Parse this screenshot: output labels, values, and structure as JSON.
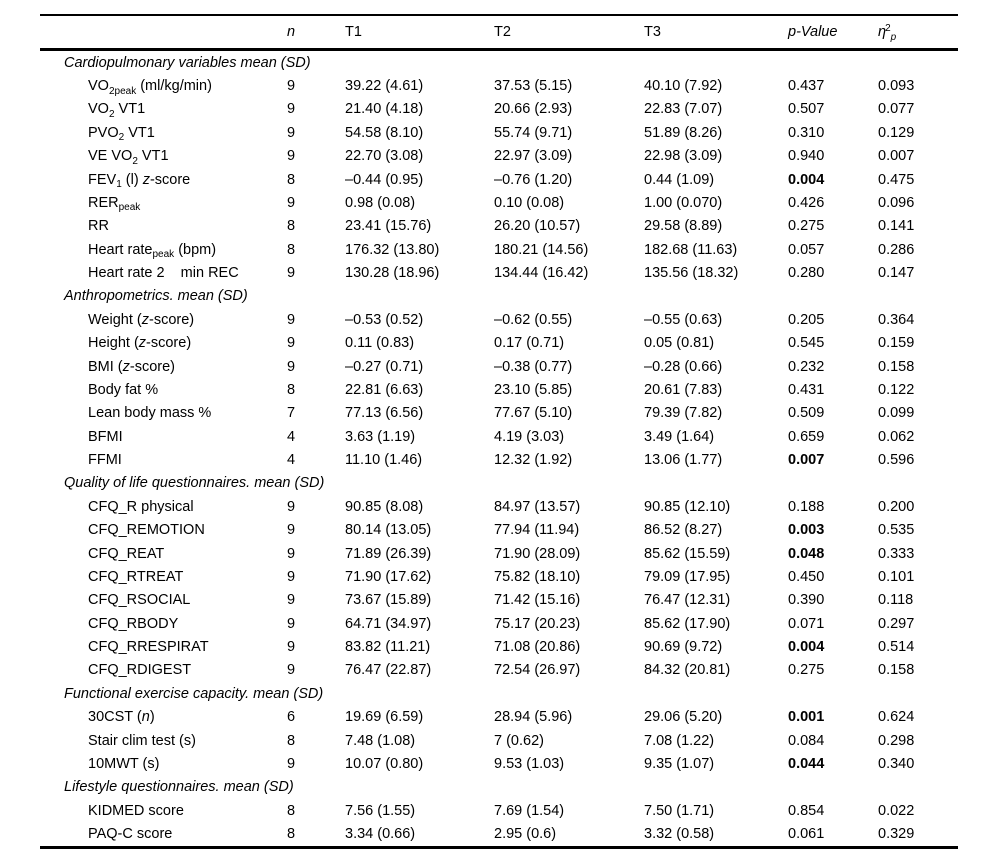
{
  "header": {
    "cols": [
      {
        "key": "label",
        "segs": []
      },
      {
        "key": "n",
        "segs": [
          [
            "n",
            "i"
          ]
        ]
      },
      {
        "key": "t1",
        "segs": [
          [
            "T1",
            ""
          ]
        ]
      },
      {
        "key": "t2",
        "segs": [
          [
            "T2",
            ""
          ]
        ]
      },
      {
        "key": "t3",
        "segs": [
          [
            "T3",
            ""
          ]
        ]
      },
      {
        "key": "p",
        "segs": [
          [
            "p-Value",
            "i"
          ]
        ]
      },
      {
        "key": "eta",
        "segs": [
          [
            "η",
            "i"
          ],
          [
            "2",
            "sup"
          ],
          [
            "p",
            "sub i"
          ]
        ]
      }
    ]
  },
  "sections": [
    {
      "title": "Cardiopulmonary variables mean (SD)",
      "rows": [
        {
          "label": [
            [
              "VO",
              ""
            ],
            [
              "2peak",
              "sub"
            ],
            [
              " (ml/kg/min)",
              ""
            ]
          ],
          "n": "9",
          "t1": "39.22 (4.61)",
          "t2": "37.53 (5.15)",
          "t3": "40.10 (7.92)",
          "p": "0.437",
          "p_bold": false,
          "eta": "0.093"
        },
        {
          "label": [
            [
              "VO",
              ""
            ],
            [
              "2",
              "sub"
            ],
            [
              " VT1",
              ""
            ]
          ],
          "n": "9",
          "t1": "21.40 (4.18)",
          "t2": "20.66 (2.93)",
          "t3": "22.83 (7.07)",
          "p": "0.507",
          "p_bold": false,
          "eta": "0.077"
        },
        {
          "label": [
            [
              "PVO",
              ""
            ],
            [
              "2",
              "sub"
            ],
            [
              " VT1",
              ""
            ]
          ],
          "n": "9",
          "t1": "54.58 (8.10)",
          "t2": "55.74 (9.71)",
          "t3": "51.89 (8.26)",
          "p": "0.310",
          "p_bold": false,
          "eta": "0.129"
        },
        {
          "label": [
            [
              "VE VO",
              ""
            ],
            [
              "2",
              "sub"
            ],
            [
              " VT1",
              ""
            ]
          ],
          "n": "9",
          "t1": "22.70 (3.08)",
          "t2": "22.97 (3.09)",
          "t3": "22.98 (3.09)",
          "p": "0.940",
          "p_bold": false,
          "eta": "0.007"
        },
        {
          "label": [
            [
              "FEV",
              ""
            ],
            [
              "1",
              "sub"
            ],
            [
              " (l) ",
              ""
            ],
            [
              "z",
              "i"
            ],
            [
              "-score",
              ""
            ]
          ],
          "n": "8",
          "t1": "–0.44 (0.95)",
          "t2": "–0.76 (1.20)",
          "t3": "0.44 (1.09)",
          "p": "0.004",
          "p_bold": true,
          "eta": "0.475"
        },
        {
          "label": [
            [
              "RER",
              ""
            ],
            [
              "peak",
              "sub"
            ]
          ],
          "n": "9",
          "t1": "0.98 (0.08)",
          "t2": "0.10 (0.08)",
          "t3": "1.00 (0.070)",
          "p": "0.426",
          "p_bold": false,
          "eta": "0.096"
        },
        {
          "label": [
            [
              "RR",
              ""
            ]
          ],
          "n": "8",
          "t1": "23.41 (15.76)",
          "t2": "26.20 (10.57)",
          "t3": "29.58 (8.89)",
          "p": "0.275",
          "p_bold": false,
          "eta": "0.141"
        },
        {
          "label": [
            [
              "Heart rate",
              ""
            ],
            [
              "peak",
              "sub"
            ],
            [
              " (bpm)",
              ""
            ]
          ],
          "n": "8",
          "t1": "176.32 (13.80)",
          "t2": "180.21 (14.56)",
          "t3": "182.68 (11.63)",
          "p": "0.057",
          "p_bold": false,
          "eta": "0.286"
        },
        {
          "label": [
            [
              "Heart rate 2    min REC",
              ""
            ]
          ],
          "n": "9",
          "t1": "130.28 (18.96)",
          "t2": "134.44 (16.42)",
          "t3": "135.56 (18.32)",
          "p": "0.280",
          "p_bold": false,
          "eta": "0.147"
        }
      ]
    },
    {
      "title": "Anthropometrics. mean (SD)",
      "rows": [
        {
          "label": [
            [
              "Weight (",
              ""
            ],
            [
              "z",
              "i"
            ],
            [
              "-score)",
              ""
            ]
          ],
          "n": "9",
          "t1": "–0.53 (0.52)",
          "t2": "–0.62 (0.55)",
          "t3": "–0.55 (0.63)",
          "p": "0.205",
          "p_bold": false,
          "eta": "0.364"
        },
        {
          "label": [
            [
              "Height (",
              ""
            ],
            [
              "z",
              "i"
            ],
            [
              "-score)",
              ""
            ]
          ],
          "n": "9",
          "t1": "0.11 (0.83)",
          "t2": "0.17 (0.71)",
          "t3": "0.05 (0.81)",
          "p": "0.545",
          "p_bold": false,
          "eta": "0.159"
        },
        {
          "label": [
            [
              "BMI (",
              ""
            ],
            [
              "z",
              "i"
            ],
            [
              "-score)",
              ""
            ]
          ],
          "n": "9",
          "t1": "–0.27 (0.71)",
          "t2": "–0.38 (0.77)",
          "t3": "–0.28 (0.66)",
          "p": "0.232",
          "p_bold": false,
          "eta": "0.158"
        },
        {
          "label": [
            [
              "Body fat %",
              ""
            ]
          ],
          "n": "8",
          "t1": "22.81 (6.63)",
          "t2": "23.10 (5.85)",
          "t3": "20.61 (7.83)",
          "p": "0.431",
          "p_bold": false,
          "eta": "0.122"
        },
        {
          "label": [
            [
              "Lean body mass %",
              ""
            ]
          ],
          "n": "7",
          "t1": "77.13 (6.56)",
          "t2": "77.67 (5.10)",
          "t3": "79.39 (7.82)",
          "p": "0.509",
          "p_bold": false,
          "eta": "0.099"
        },
        {
          "label": [
            [
              "BFMI",
              ""
            ]
          ],
          "n": "4",
          "t1": "3.63 (1.19)",
          "t2": "4.19 (3.03)",
          "t3": "3.49 (1.64)",
          "p": "0.659",
          "p_bold": false,
          "eta": "0.062"
        },
        {
          "label": [
            [
              "FFMI",
              ""
            ]
          ],
          "n": "4",
          "t1": "11.10 (1.46)",
          "t2": "12.32 (1.92)",
          "t3": "13.06 (1.77)",
          "p": "0.007",
          "p_bold": true,
          "eta": "0.596"
        }
      ]
    },
    {
      "title": "Quality of life questionnaires. mean (SD)",
      "rows": [
        {
          "label": [
            [
              "CFQ_R physical",
              ""
            ]
          ],
          "n": "9",
          "t1": "90.85 (8.08)",
          "t2": "84.97 (13.57)",
          "t3": "90.85 (12.10)",
          "p": "0.188",
          "p_bold": false,
          "eta": "0.200"
        },
        {
          "label": [
            [
              "CFQ_REMOTION",
              ""
            ]
          ],
          "n": "9",
          "t1": "80.14 (13.05)",
          "t2": "77.94 (11.94)",
          "t3": "86.52 (8.27)",
          "p": "0.003",
          "p_bold": true,
          "eta": "0.535"
        },
        {
          "label": [
            [
              "CFQ_REAT",
              ""
            ]
          ],
          "n": "9",
          "t1": "71.89 (26.39)",
          "t2": "71.90 (28.09)",
          "t3": "85.62 (15.59)",
          "p": "0.048",
          "p_bold": true,
          "eta": "0.333"
        },
        {
          "label": [
            [
              "CFQ_RTREAT",
              ""
            ]
          ],
          "n": "9",
          "t1": "71.90 (17.62)",
          "t2": "75.82 (18.10)",
          "t3": "79.09 (17.95)",
          "p": "0.450",
          "p_bold": false,
          "eta": "0.101"
        },
        {
          "label": [
            [
              "CFQ_RSOCIAL",
              ""
            ]
          ],
          "n": "9",
          "t1": "73.67 (15.89)",
          "t2": "71.42 (15.16)",
          "t3": "76.47 (12.31)",
          "p": "0.390",
          "p_bold": false,
          "eta": "0.118"
        },
        {
          "label": [
            [
              "CFQ_RBODY",
              ""
            ]
          ],
          "n": "9",
          "t1": "64.71 (34.97)",
          "t2": "75.17 (20.23)",
          "t3": "85.62 (17.90)",
          "p": "0.071",
          "p_bold": false,
          "eta": "0.297"
        },
        {
          "label": [
            [
              "CFQ_RRESPIRAT",
              ""
            ]
          ],
          "n": "9",
          "t1": "83.82 (11.21)",
          "t2": "71.08 (20.86)",
          "t3": "90.69 (9.72)",
          "p": "0.004",
          "p_bold": true,
          "eta": "0.514"
        },
        {
          "label": [
            [
              "CFQ_RDIGEST",
              ""
            ]
          ],
          "n": "9",
          "t1": "76.47 (22.87)",
          "t2": "72.54 (26.97)",
          "t3": "84.32 (20.81)",
          "p": "0.275",
          "p_bold": false,
          "eta": "0.158"
        }
      ]
    },
    {
      "title": "Functional exercise capacity. mean (SD)",
      "rows": [
        {
          "label": [
            [
              "30CST (",
              ""
            ],
            [
              "n",
              "i"
            ],
            [
              ")",
              ""
            ]
          ],
          "n": "6",
          "t1": "19.69 (6.59)",
          "t2": "28.94 (5.96)",
          "t3": "29.06 (5.20)",
          "p": "0.001",
          "p_bold": true,
          "eta": "0.624"
        },
        {
          "label": [
            [
              "Stair clim test (s)",
              ""
            ]
          ],
          "n": "8",
          "t1": "7.48 (1.08)",
          "t2": "7 (0.62)",
          "t3": "7.08 (1.22)",
          "p": "0.084",
          "p_bold": false,
          "eta": "0.298"
        },
        {
          "label": [
            [
              "10MWT (s)",
              ""
            ]
          ],
          "n": "9",
          "t1": "10.07 (0.80)",
          "t2": "9.53 (1.03)",
          "t3": "9.35 (1.07)",
          "p": "0.044",
          "p_bold": true,
          "eta": "0.340"
        }
      ]
    },
    {
      "title": "Lifestyle questionnaires. mean (SD)",
      "rows": [
        {
          "label": [
            [
              "KIDMED score",
              ""
            ]
          ],
          "n": "8",
          "t1": "7.56 (1.55)",
          "t2": "7.69 (1.54)",
          "t3": "7.50 (1.71)",
          "p": "0.854",
          "p_bold": false,
          "eta": "0.022"
        },
        {
          "label": [
            [
              "PAQ-C score",
              ""
            ]
          ],
          "n": "8",
          "t1": "3.34 (0.66)",
          "t2": "2.95 (0.6)",
          "t3": "3.32 (0.58)",
          "p": "0.061",
          "p_bold": false,
          "eta": "0.329"
        }
      ]
    }
  ]
}
